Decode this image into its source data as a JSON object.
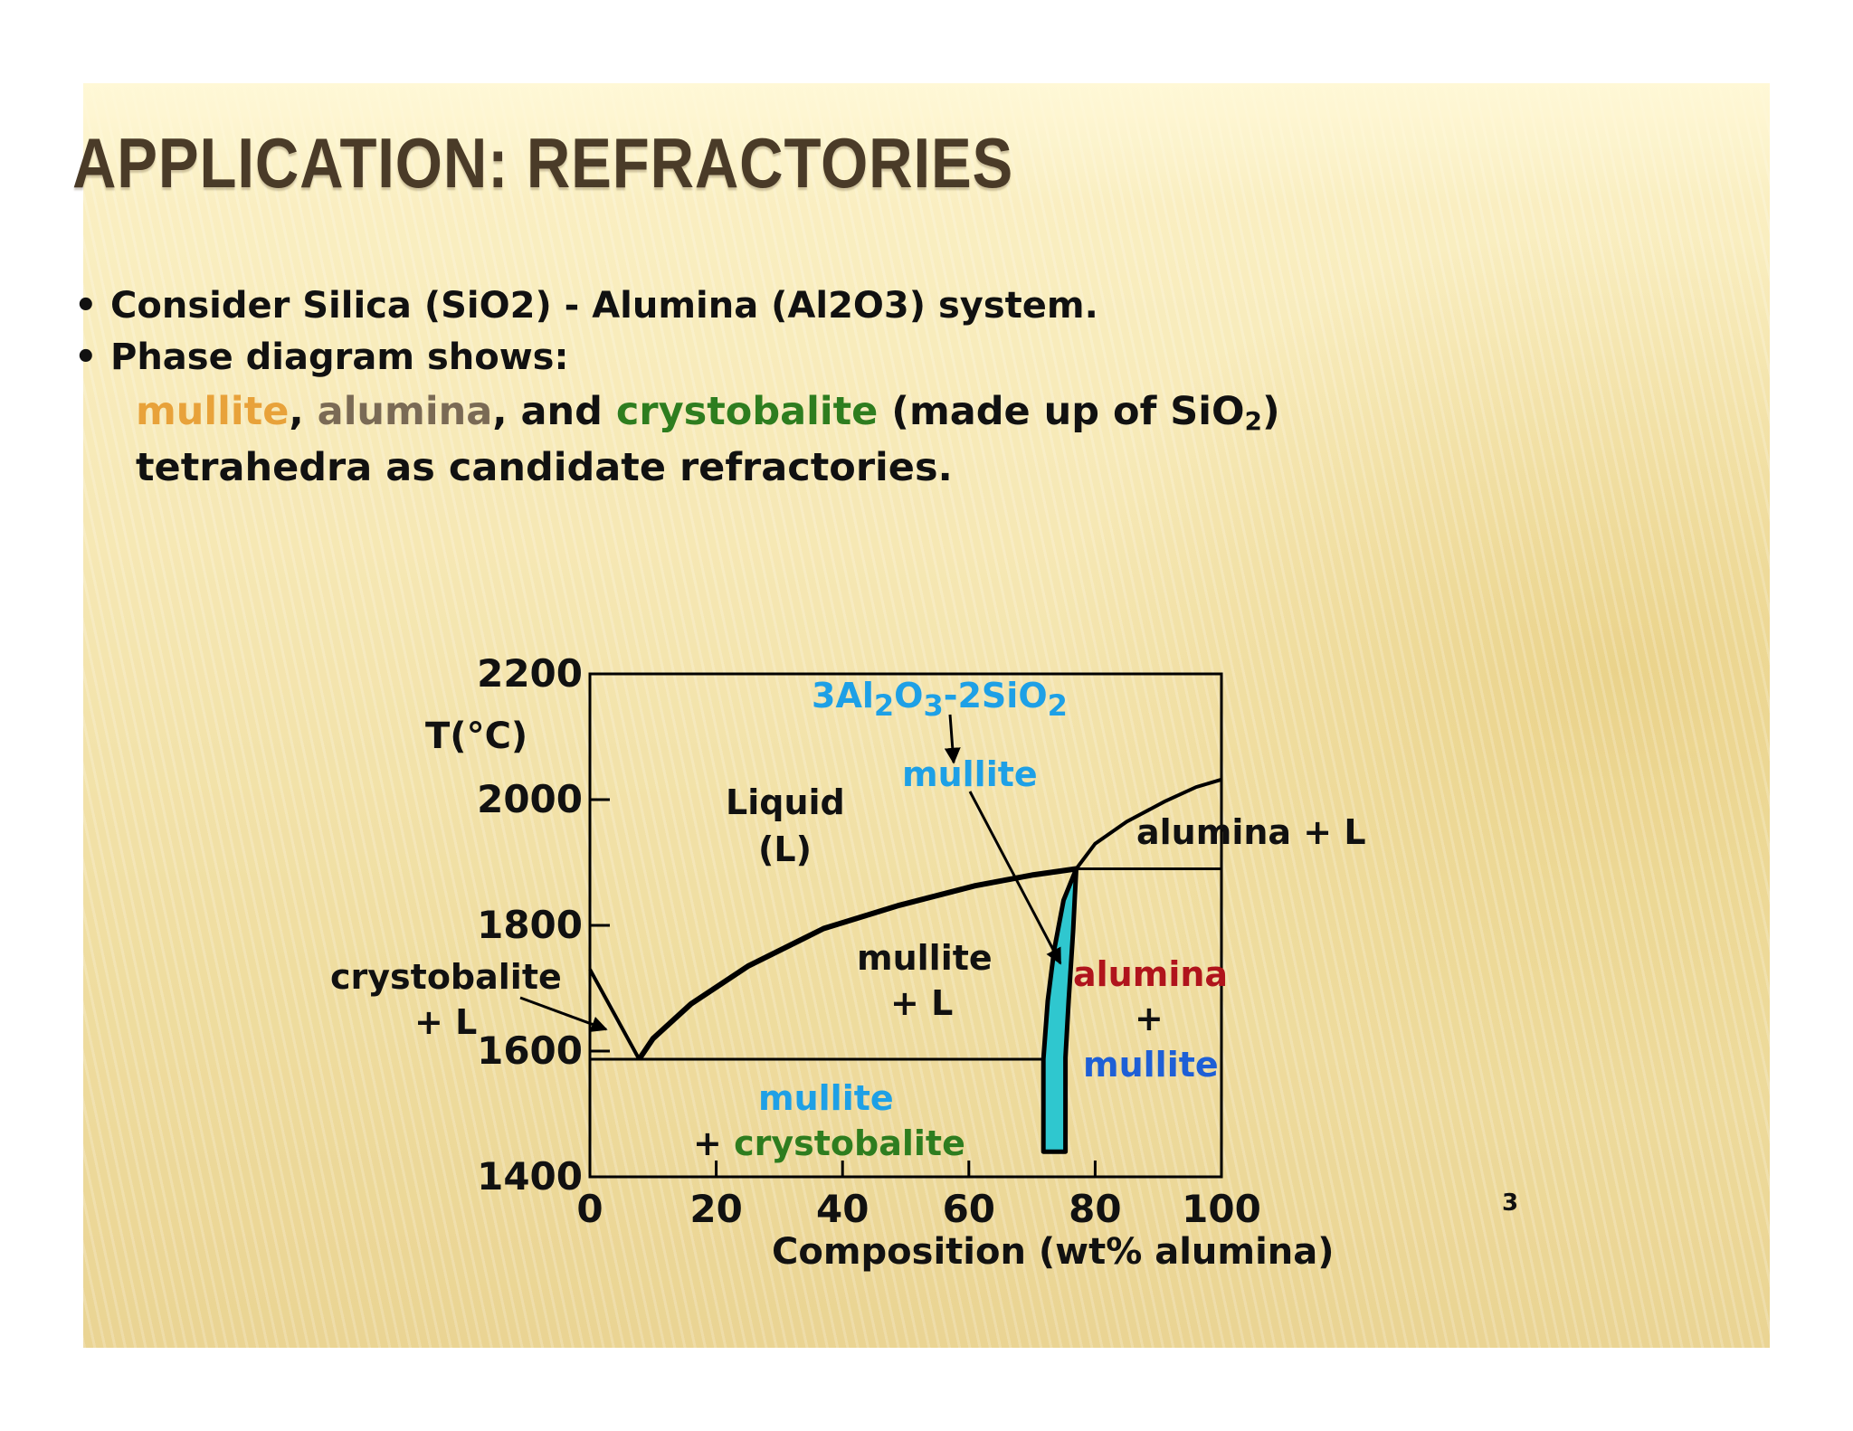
{
  "slide": {
    "title": "APPLICATION:  REFRACTORIES",
    "bullet1": "Consider  Silica (SiO2) - Alumina (Al2O3) system.",
    "bullet2": "Phase diagram shows:",
    "line1": {
      "w1": "mullite",
      "w2": ", ",
      "w3": "alumina",
      "w4": ", and ",
      "w5": "crystobalite",
      "w6": " (made up of SiO",
      "sub": "2",
      "w7": ")"
    },
    "line2": "tetrahedra as candidate refractories.",
    "page_number": "3"
  },
  "colors": {
    "mullite_orange": "#e8a23a",
    "alumina_gray": "#7a6a55",
    "crystobalite_green": "#2e7d1f",
    "mullite_blue": "#1ea0e6",
    "alumina_red": "#b0141c",
    "mullite_band": "#2fc7cf"
  },
  "chart_data": {
    "type": "phase-diagram",
    "xlabel": "Composition (wt% alumina)",
    "ylabel": "T(°C)",
    "xlim": [
      0,
      100
    ],
    "ylim": [
      1400,
      2200
    ],
    "xticks": [
      0,
      20,
      40,
      60,
      80,
      100
    ],
    "yticks": [
      1400,
      1600,
      1800,
      2000,
      2200
    ],
    "liquidus_silica_side": [
      [
        0,
        1730
      ],
      [
        7.8,
        1587
      ]
    ],
    "liquidus_mullite_side": [
      [
        7.8,
        1587
      ],
      [
        10,
        1620
      ],
      [
        16,
        1675
      ],
      [
        25,
        1735
      ],
      [
        37,
        1795
      ],
      [
        49,
        1832
      ],
      [
        61,
        1863
      ],
      [
        70,
        1880
      ],
      [
        77,
        1890
      ]
    ],
    "liquidus_alumina_side": [
      [
        77,
        1890
      ],
      [
        80,
        1930
      ],
      [
        85,
        1965
      ],
      [
        91,
        1997
      ],
      [
        96,
        2020
      ],
      [
        100,
        2032
      ]
    ],
    "eutectic_isotherm": {
      "T": 1587,
      "x_from": 0,
      "x_to": 71.8
    },
    "peritectic_isotherm": {
      "T": 1890,
      "x_from": 77,
      "x_to": 100
    },
    "mullite_phase_field": [
      [
        71.8,
        1440
      ],
      [
        71.8,
        1587
      ],
      [
        72.5,
        1680
      ],
      [
        73.5,
        1760
      ],
      [
        75,
        1840
      ],
      [
        77,
        1890
      ],
      [
        76.5,
        1790
      ],
      [
        75.8,
        1680
      ],
      [
        75.3,
        1590
      ],
      [
        75.3,
        1440
      ]
    ],
    "annotations": {
      "compound_formula": {
        "a": "3Al",
        "b": "2",
        "c": "O",
        "d": "3",
        "e": "-2SiO",
        "f": "2"
      },
      "compound_name": "mullite",
      "liquid": "Liquid",
      "liquid_symbol": "(L)",
      "alumina_L": "alumina + L",
      "mullite_L_1": "mullite",
      "mullite_L_2": "+ L",
      "crysto_L_1": "crystobalite",
      "crysto_L_2": "+ L",
      "alum_mull_1": "alumina",
      "alum_mull_2": "+",
      "alum_mull_3": "mullite",
      "mull_crysto_1": "mullite",
      "mull_crysto_2": "+ ",
      "mull_crysto_3": "crystobalite"
    }
  }
}
